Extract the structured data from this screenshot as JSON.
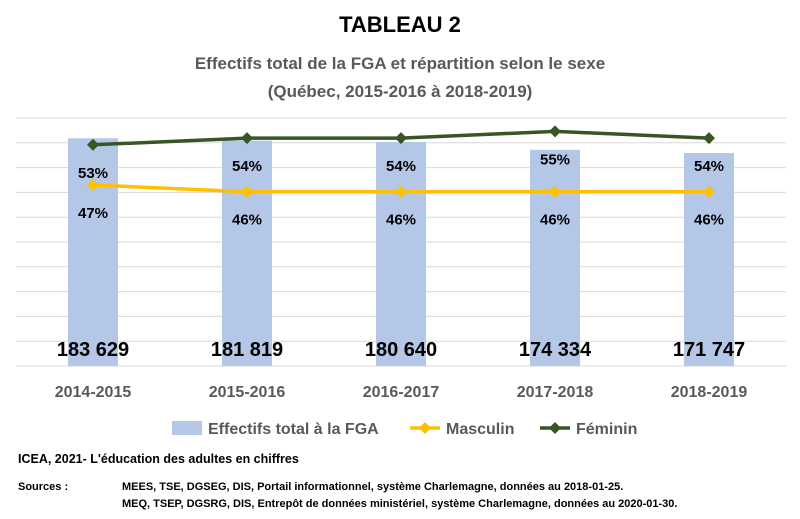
{
  "chart_data": {
    "type": "bar+line",
    "title": "TABLEAU 2",
    "subtitle_line1": "Effectifs total de la FGA et répartition selon le sexe",
    "subtitle_line2": "(Québec, 2015-2016 à 2018-2019)",
    "categories": [
      "2014-2015",
      "2015-2016",
      "2016-2017",
      "2017-2018",
      "2018-2019"
    ],
    "bars": {
      "name": "Effectifs total à la FGA",
      "values": [
        183629,
        181819,
        180640,
        174334,
        171747
      ],
      "labels": [
        "183 629",
        "181 819",
        "180 640",
        "174 334",
        "171 747"
      ],
      "color": "#b4c7e7"
    },
    "series": [
      {
        "name": "Masculin",
        "values": [
          47,
          46,
          46,
          46,
          46
        ],
        "labels": [
          "47%",
          "46%",
          "46%",
          "46%",
          "46%"
        ],
        "color": "#ffc000"
      },
      {
        "name": "Féminin",
        "values": [
          53,
          54,
          54,
          55,
          54
        ],
        "labels": [
          "53%",
          "54%",
          "54%",
          "55%",
          "54%"
        ],
        "color": "#375623"
      }
    ],
    "legend_position": "bottom",
    "grid": true
  },
  "footer": {
    "citation": "ICEA, 2021- L'éducation des adultes en chiffres",
    "sources_label": "Sources :",
    "source_lines": [
      "MEES, TSE, DGSEG, DIS, Portail informationnel, système Charlemagne, données au 2018-01-25.",
      "MEQ, TSEP, DGSRG, DIS, Entrepôt de données ministériel, système Charlemagne, données au 2020-01-30."
    ]
  }
}
